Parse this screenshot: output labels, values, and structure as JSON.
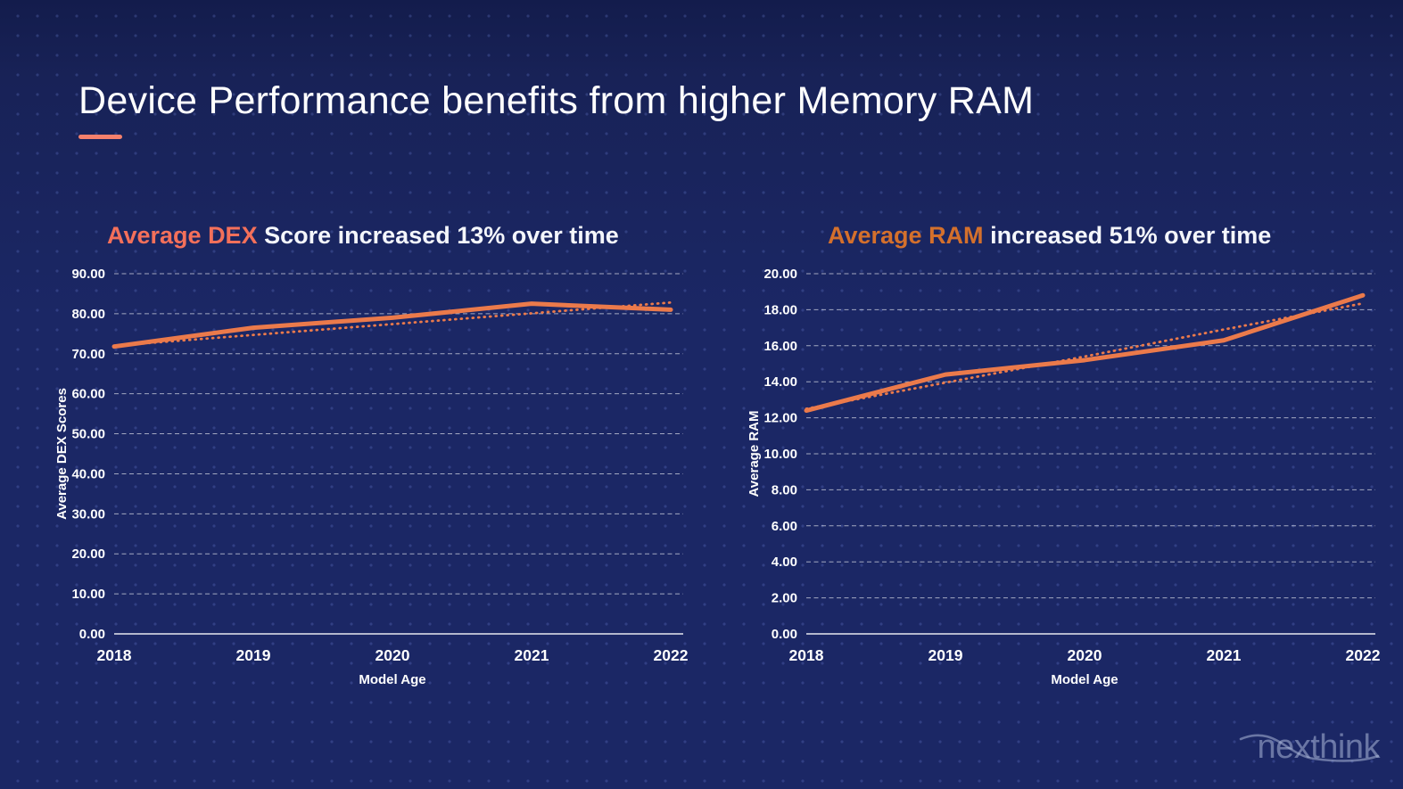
{
  "slide": {
    "title": "Device Performance benefits from higher Memory RAM",
    "logo_text": "nexthink",
    "colors": {
      "background": "#1b2765",
      "accent": "#f5806c",
      "line": "#eb7a4b",
      "dex_highlight": "#f4705a",
      "ram_highlight": "#d4702c",
      "text": "#ffffff"
    }
  },
  "chart_data": [
    {
      "type": "line",
      "title": "Average DEX Score increased 13% over time",
      "title_highlight": "Average DEX",
      "title_rest": " Score increased 13% over time",
      "highlight_color": "#f4705a",
      "xlabel": "Model Age",
      "ylabel": "Average DEX Scores",
      "categories": [
        "2018",
        "2019",
        "2020",
        "2021",
        "2022"
      ],
      "series": [
        {
          "style": "solid",
          "values": [
            71.8,
            76.5,
            79.0,
            82.5,
            81.0
          ]
        },
        {
          "style": "dotted",
          "values": [
            72.0,
            74.7,
            77.4,
            80.1,
            82.8
          ]
        }
      ],
      "ylim": [
        0,
        90
      ],
      "ytick_step": 10,
      "line_color": "#eb7a4b",
      "grid": true,
      "legend": "none"
    },
    {
      "type": "line",
      "title": "Average RAM increased 51% over time",
      "title_highlight": "Average RAM",
      "title_rest": " increased 51% over time",
      "highlight_color": "#d4702c",
      "xlabel": "Model Age",
      "ylabel": "Average RAM",
      "categories": [
        "2018",
        "2019",
        "2020",
        "2021",
        "2022"
      ],
      "series": [
        {
          "style": "solid",
          "values": [
            12.4,
            14.4,
            15.2,
            16.3,
            18.8
          ]
        },
        {
          "style": "dotted",
          "values": [
            12.5,
            13.95,
            15.4,
            16.9,
            18.35
          ]
        }
      ],
      "ylim": [
        0,
        20
      ],
      "ytick_step": 2,
      "line_color": "#eb7a4b",
      "grid": true,
      "legend": "none"
    }
  ]
}
